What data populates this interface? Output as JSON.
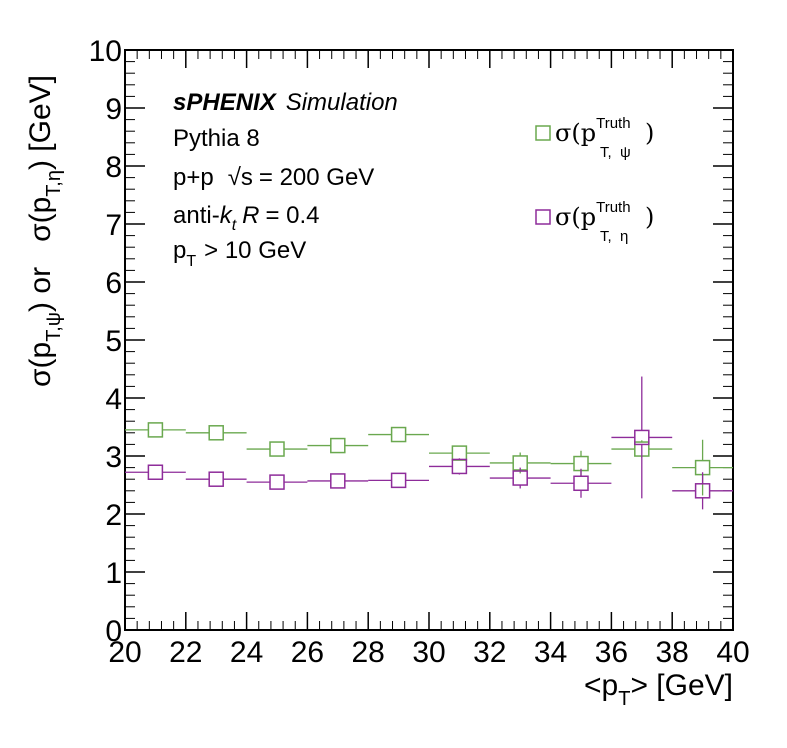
{
  "chart_data": {
    "type": "scatter",
    "xlabel": {
      "pre": "<p",
      "sub": "T",
      "post": "> [GeV]"
    },
    "ylabel": {
      "part1": "σ(p",
      "sub1": "T,ψ",
      "part2": ") or   σ(p",
      "sub2": "T,η",
      "part3": ") [GeV]"
    },
    "xlim": [
      20,
      40
    ],
    "ylim": [
      0,
      10
    ],
    "x_ticks": [
      "20",
      "22",
      "24",
      "26",
      "28",
      "30",
      "32",
      "34",
      "36",
      "38",
      "40"
    ],
    "y_ticks": [
      "0",
      "1",
      "2",
      "3",
      "4",
      "5",
      "6",
      "7",
      "8",
      "9",
      "10"
    ],
    "grid": false,
    "legend_position": "top-right",
    "annotations": {
      "experiment_bold": "sPHENIX",
      "experiment_italic": "Simulation",
      "generator": "Pythia 8",
      "system": "p+p",
      "energy_sqrt": "√s",
      "energy_value": "= 200 GeV",
      "jet_pre": "anti-",
      "jet_k": "k",
      "jet_k_sub": "t",
      "jet_R": "R",
      "jet_R_value": "= 0.4",
      "cut_p": "p",
      "cut_sub": "T",
      "cut_value": "> 10 GeV"
    },
    "series": [
      {
        "legend_main": "σ(p",
        "legend_sup": "Truth",
        "legend_sub": "T,  ψ",
        "legend_close": ")",
        "color": "#6aa84f",
        "points": [
          {
            "x": 21,
            "y": 3.45,
            "xerr": 1,
            "yerr": 0.05
          },
          {
            "x": 23,
            "y": 3.4,
            "xerr": 1,
            "yerr": 0.05
          },
          {
            "x": 25,
            "y": 3.12,
            "xerr": 1,
            "yerr": 0.05
          },
          {
            "x": 27,
            "y": 3.18,
            "xerr": 1,
            "yerr": 0.05
          },
          {
            "x": 29,
            "y": 3.37,
            "xerr": 1,
            "yerr": 0.06
          },
          {
            "x": 31,
            "y": 3.05,
            "xerr": 1,
            "yerr": 0.12
          },
          {
            "x": 33,
            "y": 2.88,
            "xerr": 1,
            "yerr": 0.18
          },
          {
            "x": 35,
            "y": 2.87,
            "xerr": 1,
            "yerr": 0.22
          },
          {
            "x": 37,
            "y": 3.12,
            "xerr": 1,
            "yerr": 0.15
          },
          {
            "x": 39,
            "y": 2.8,
            "xerr": 1,
            "yerr": 0.48
          }
        ]
      },
      {
        "legend_main": "σ(p",
        "legend_sup": "Truth",
        "legend_sub": "T,  η",
        "legend_close": ")",
        "color": "#8e2c9a",
        "points": [
          {
            "x": 21,
            "y": 2.72,
            "xerr": 1,
            "yerr": 0.04
          },
          {
            "x": 23,
            "y": 2.6,
            "xerr": 1,
            "yerr": 0.04
          },
          {
            "x": 25,
            "y": 2.55,
            "xerr": 1,
            "yerr": 0.04
          },
          {
            "x": 27,
            "y": 2.57,
            "xerr": 1,
            "yerr": 0.05
          },
          {
            "x": 29,
            "y": 2.58,
            "xerr": 1,
            "yerr": 0.06
          },
          {
            "x": 31,
            "y": 2.82,
            "xerr": 1,
            "yerr": 0.14
          },
          {
            "x": 33,
            "y": 2.62,
            "xerr": 1,
            "yerr": 0.18
          },
          {
            "x": 35,
            "y": 2.53,
            "xerr": 1,
            "yerr": 0.25
          },
          {
            "x": 37,
            "y": 3.32,
            "xerr": 1,
            "yerr": 1.05
          },
          {
            "x": 39,
            "y": 2.4,
            "xerr": 1,
            "yerr": 0.32
          }
        ]
      }
    ]
  }
}
